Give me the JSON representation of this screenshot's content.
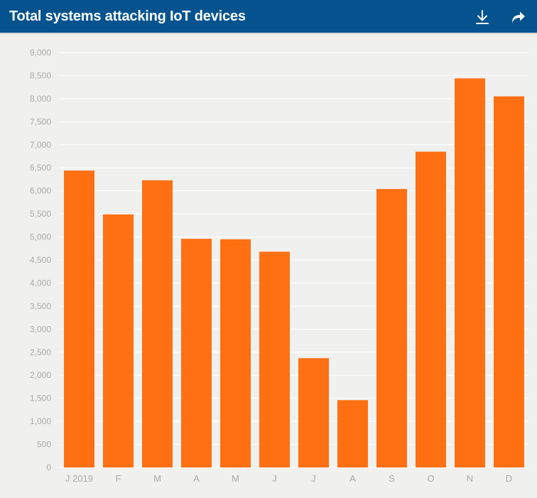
{
  "header": {
    "title": "Total systems attacking IoT devices",
    "download_icon": "download-icon",
    "share_icon": "share-arrow-icon"
  },
  "colors": {
    "header_bg": "#04538e",
    "bar": "#ff7012",
    "grid": "#ffffff",
    "tick_text": "#a9a9a9",
    "background": "#f0f0ee"
  },
  "chart_data": {
    "type": "bar",
    "title": "Total systems attacking IoT devices",
    "categories": [
      "J 2019",
      "F",
      "M",
      "A",
      "M",
      "J",
      "J",
      "A",
      "S",
      "O",
      "N",
      "D"
    ],
    "values": [
      6440,
      5490,
      6230,
      4960,
      4950,
      4680,
      2370,
      1460,
      6040,
      6850,
      8440,
      8050
    ],
    "ylim": [
      0,
      9000
    ],
    "yticks": [
      0,
      500,
      1000,
      1500,
      2000,
      2500,
      3000,
      3500,
      4000,
      4500,
      5000,
      5500,
      6000,
      6500,
      7000,
      7500,
      8000,
      8500,
      9000
    ],
    "ytick_labels": [
      "0",
      "500",
      "1,000",
      "1,500",
      "2,000",
      "2,500",
      "3,000",
      "3,500",
      "4,000",
      "4,500",
      "5,000",
      "5,500",
      "6,000",
      "6,500",
      "7,000",
      "7,500",
      "8,000",
      "8,500",
      "9,000"
    ],
    "xlabel": "",
    "ylabel": "",
    "grid": true,
    "legend": "none"
  }
}
